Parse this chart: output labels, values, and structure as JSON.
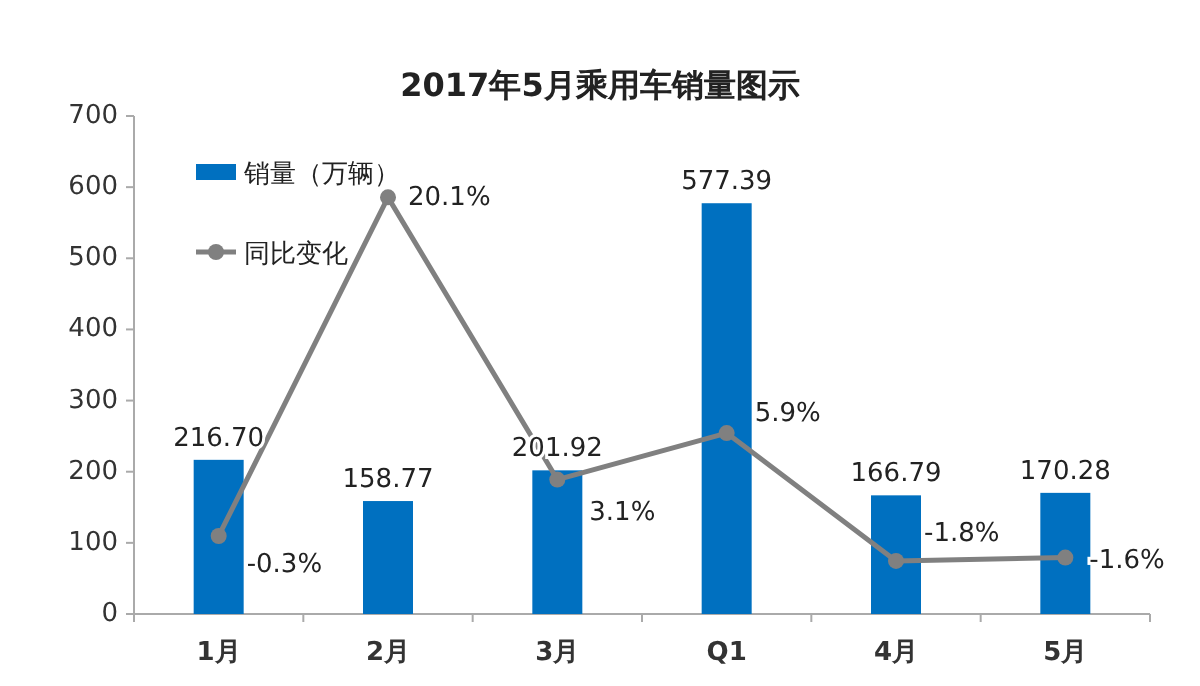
{
  "chart_data": {
    "type": "bar",
    "title": "2017年5月乘用车销量图示",
    "categories": [
      "1月",
      "2月",
      "3月",
      "Q1",
      "4月",
      "5月"
    ],
    "ylim": [
      0,
      700
    ],
    "yticks": [
      0,
      100,
      200,
      300,
      400,
      500,
      600,
      700
    ],
    "y2lim": [
      -5,
      25
    ],
    "legend": "top left",
    "marker": "circle",
    "series": [
      {
        "name": "销量（万辆）",
        "color": "#0070c0",
        "values": [
          216.7,
          158.77,
          201.92,
          577.39,
          166.79,
          170.28
        ],
        "value_labels": [
          "216.70",
          "158.77",
          "201.92",
          "577.39",
          "166.79",
          "170.28"
        ]
      },
      {
        "name": "同比变化",
        "type": "line",
        "axis": "y2",
        "color": "#808080",
        "values": [
          -0.3,
          20.1,
          3.1,
          5.9,
          -1.8,
          -1.6
        ],
        "value_labels": [
          "-0.3%",
          "20.1%",
          "3.1%",
          "5.9%",
          "-1.8%",
          "-1.6%"
        ]
      }
    ]
  }
}
